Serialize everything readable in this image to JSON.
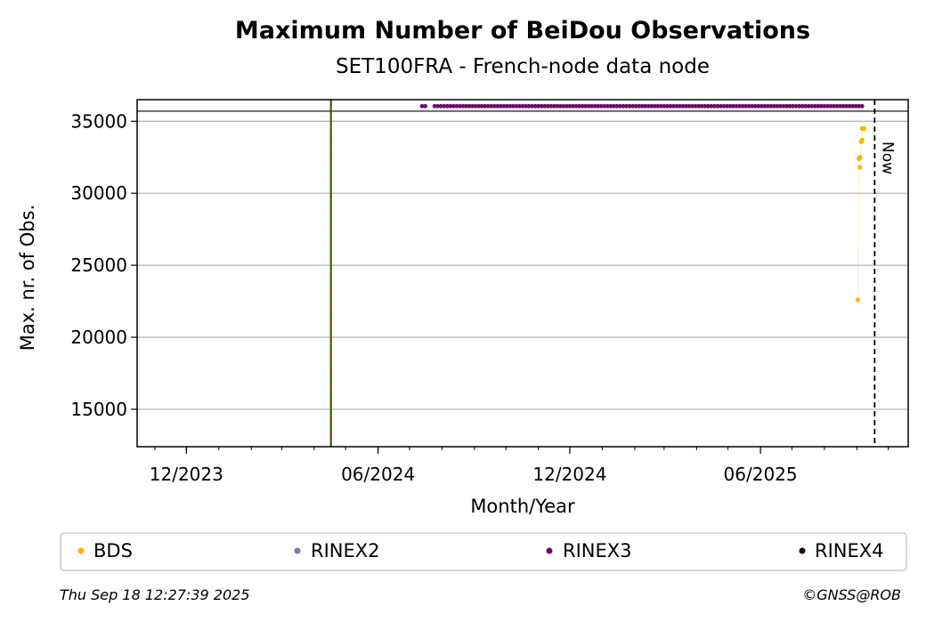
{
  "chart_data": {
    "type": "scatter",
    "title": "Maximum Number of BeiDou Observations",
    "subtitle": "SET100FRA - French-node data node",
    "xlabel": "Month/Year",
    "ylabel": "Max. nr. of Obs.",
    "x_range": [
      "2023-10-15",
      "2025-10-20"
    ],
    "ylim": [
      12400,
      36500
    ],
    "y_ticks": [
      15000,
      20000,
      25000,
      30000,
      35000
    ],
    "x_ticks": [
      {
        "date": "2023-12-01",
        "label": "12/2023"
      },
      {
        "date": "2024-06-01",
        "label": "06/2024"
      },
      {
        "date": "2024-12-01",
        "label": "12/2024"
      },
      {
        "date": "2025-06-01",
        "label": "06/2025"
      }
    ],
    "grid": "y-major",
    "reference_lines": {
      "vertical_red_green": "2024-04-17",
      "now": "2025-09-18",
      "now_label": "Now",
      "horizontal_y": 35700
    },
    "series": [
      {
        "name": "BDS",
        "color": "#ffb000",
        "points": [
          [
            "2025-09-02",
            22600
          ],
          [
            "2025-09-03",
            32400
          ],
          [
            "2025-09-04",
            32500
          ],
          [
            "2025-09-04",
            31800
          ],
          [
            "2025-09-05",
            33600
          ],
          [
            "2025-09-06",
            33700
          ],
          [
            "2025-09-06",
            34500
          ],
          [
            "2025-09-08",
            34500
          ]
        ]
      },
      {
        "name": "RINEX2",
        "color": "#7b78b8",
        "points": []
      },
      {
        "name": "RINEX3",
        "color": "#6a0a6a",
        "y_level": 36050,
        "segments": [
          [
            "2024-07-13",
            "2024-07-17"
          ],
          [
            "2024-07-25",
            "2025-09-08"
          ]
        ]
      },
      {
        "name": "RINEX4",
        "color": "#1a0518",
        "points": []
      }
    ]
  },
  "footer": {
    "timestamp": "Thu Sep 18 12:27:39 2025",
    "copyright": "©GNSS@ROB"
  }
}
